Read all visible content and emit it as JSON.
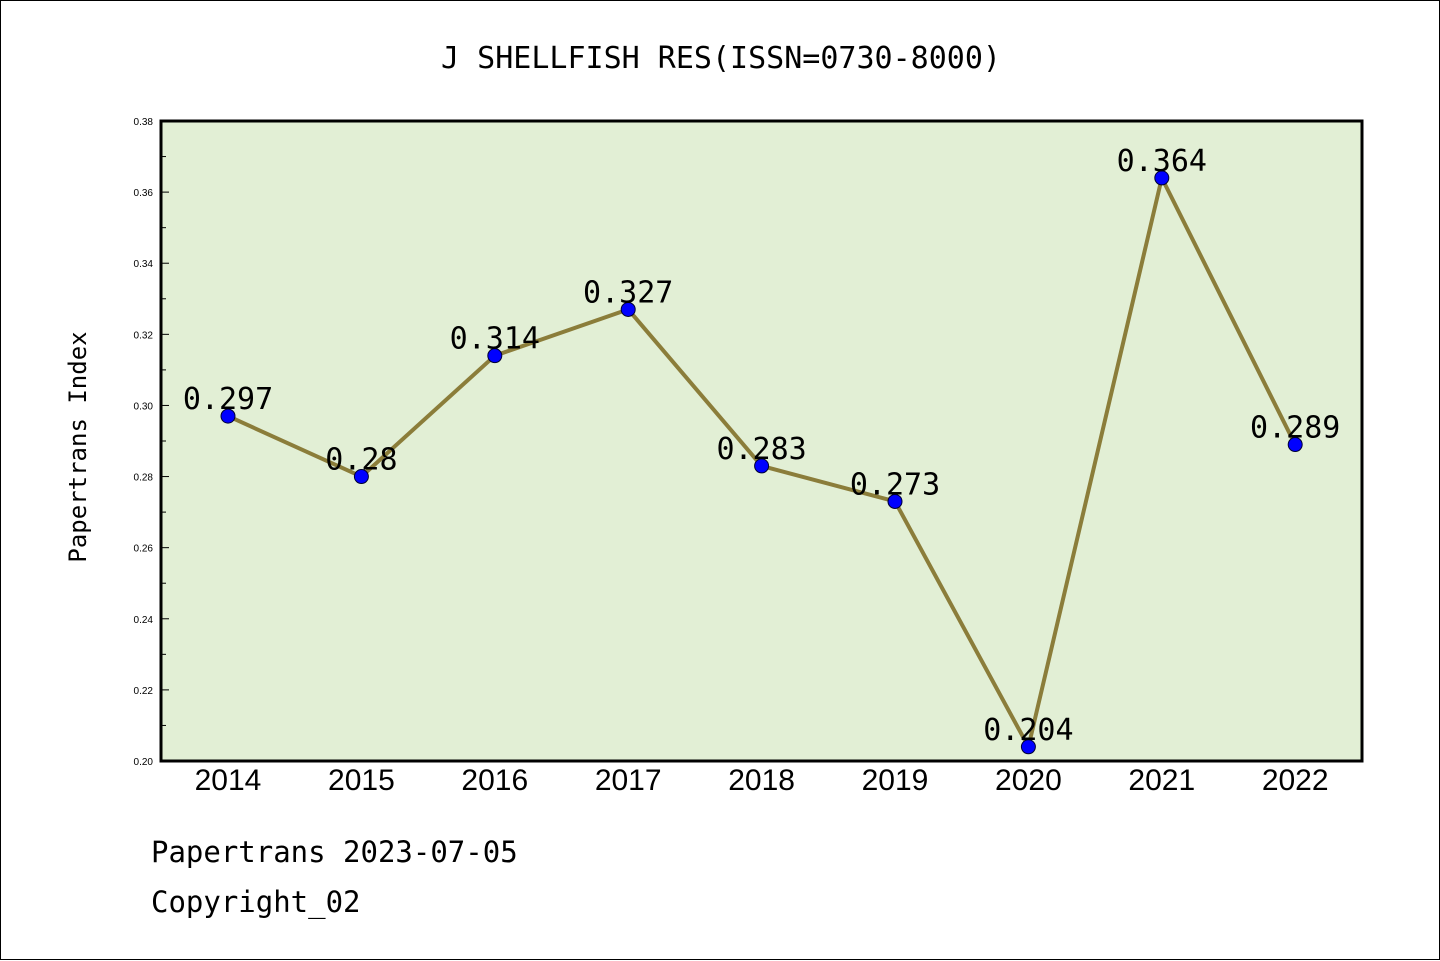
{
  "chart_data": {
    "type": "line",
    "title": "J SHELLFISH RES(ISSN=0730-8000)",
    "xlabel": "",
    "ylabel": "Papertrans Index",
    "categories": [
      "2014",
      "2015",
      "2016",
      "2017",
      "2018",
      "2019",
      "2020",
      "2021",
      "2022"
    ],
    "series": [
      {
        "values": [
          0.297,
          0.28,
          0.314,
          0.327,
          0.283,
          0.273,
          0.204,
          0.364,
          0.289
        ],
        "data_labels": [
          "0.297",
          "0.28",
          "0.314",
          "0.327",
          "0.283",
          "0.273",
          "0.204",
          "0.364",
          "0.289"
        ],
        "line_color": "#8b7d3a",
        "marker_color": "#0000ff"
      }
    ],
    "ylim": [
      0.2,
      0.38
    ],
    "yticks": [
      0.2,
      0.22,
      0.24,
      0.26,
      0.28,
      0.3,
      0.32,
      0.34,
      0.36,
      0.38
    ],
    "ytick_labels": [
      "0.20",
      "0.22",
      "0.24",
      "0.26",
      "0.28",
      "0.30",
      "0.32",
      "0.34",
      "0.36",
      "0.38"
    ],
    "grid": false,
    "legend": "none",
    "plot_background": "#e2efd5"
  },
  "footer": {
    "line1": "Papertrans 2023-07-05",
    "line2": "Copyright_02"
  }
}
